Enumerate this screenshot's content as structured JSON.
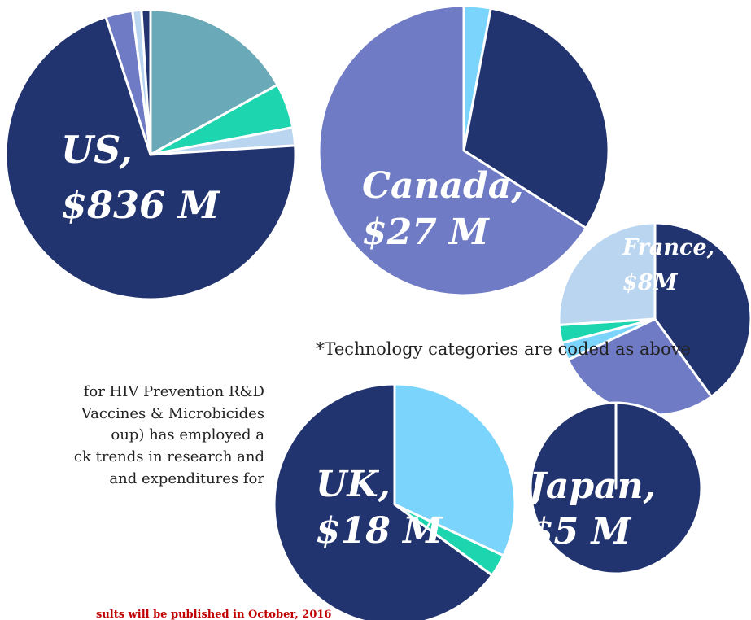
{
  "chart_data": [
    {
      "type": "pie",
      "label": [
        "US,",
        "$836 M"
      ],
      "values": [
        17,
        5,
        2,
        71,
        3,
        1,
        1
      ],
      "colors": [
        "#6aaab8",
        "#1dd6b0",
        "#b9d5f0",
        "#22346f",
        "#6f7bc4",
        "#b9d5f0",
        "#22346f"
      ]
    },
    {
      "type": "pie",
      "label": [
        "Canada,",
        "$27 M"
      ],
      "values": [
        3,
        31,
        66
      ],
      "colors": [
        "#7bd4fb",
        "#22346f",
        "#6f7bc4"
      ]
    },
    {
      "type": "pie",
      "label": [
        "France,",
        "$8M"
      ],
      "values": [
        40,
        28,
        3,
        3,
        26
      ],
      "colors": [
        "#22346f",
        "#6f7bc4",
        "#7bd4fb",
        "#1dd6b0",
        "#b9d5f0"
      ]
    },
    {
      "type": "pie",
      "label": [
        "UK,",
        "$18 M"
      ],
      "values": [
        32,
        3,
        65
      ],
      "colors": [
        "#7bd4fb",
        "#1dd6b0",
        "#22346f"
      ]
    },
    {
      "type": "pie",
      "label": [
        "Japan,",
        "$5 M"
      ],
      "values": [
        100,
        0
      ],
      "colors": [
        "#22346f",
        "#22346f"
      ]
    }
  ],
  "footnote": "*Technology categories are coded as above",
  "paragraph": [
    "for HIV Prevention R&D",
    "Vaccines & Microbicides",
    "oup) has employed a",
    "ck trends in research and",
    "and expenditures for"
  ],
  "notice": "sults will be published in October, 2016"
}
